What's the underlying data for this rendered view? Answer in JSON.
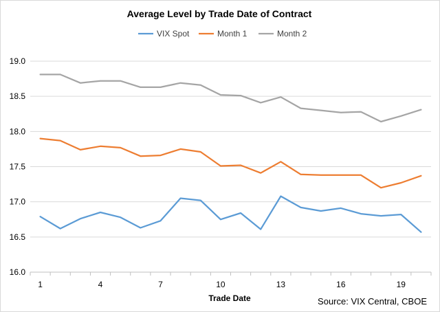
{
  "chart_data": {
    "type": "line",
    "title": "Average Level by Trade Date of Contract",
    "xlabel": "Trade Date",
    "ylabel": "",
    "source": "Source: VIX Central, CBOE",
    "x": [
      1,
      2,
      3,
      4,
      5,
      6,
      7,
      8,
      9,
      10,
      11,
      12,
      13,
      14,
      15,
      16,
      17,
      18,
      19,
      20
    ],
    "x_tick_labels": [
      "1",
      "4",
      "7",
      "10",
      "13",
      "16",
      "19"
    ],
    "y_tick_labels": [
      "16.0",
      "16.5",
      "17.0",
      "17.5",
      "18.0",
      "18.5",
      "19.0"
    ],
    "ylim": [
      16.0,
      19.0
    ],
    "grid": true,
    "legend_position": "top",
    "series": [
      {
        "name": "VIX Spot",
        "color": "#5b9bd5",
        "values": [
          16.79,
          16.62,
          16.76,
          16.85,
          16.78,
          16.63,
          16.73,
          17.05,
          17.02,
          16.75,
          16.84,
          16.61,
          17.08,
          16.92,
          16.87,
          16.91,
          16.83,
          16.8,
          16.82,
          16.57
        ]
      },
      {
        "name": "Month 1",
        "color": "#ed7d31",
        "values": [
          17.9,
          17.87,
          17.74,
          17.79,
          17.77,
          17.65,
          17.66,
          17.75,
          17.71,
          17.51,
          17.52,
          17.41,
          17.57,
          17.39,
          17.38,
          17.38,
          17.38,
          17.2,
          17.27,
          17.37
        ]
      },
      {
        "name": "Month 2",
        "color": "#a5a5a5",
        "values": [
          18.81,
          18.81,
          18.69,
          18.72,
          18.72,
          18.63,
          18.63,
          18.69,
          18.66,
          18.52,
          18.51,
          18.41,
          18.49,
          18.33,
          18.3,
          18.27,
          18.28,
          18.14,
          18.22,
          18.31
        ]
      }
    ]
  }
}
